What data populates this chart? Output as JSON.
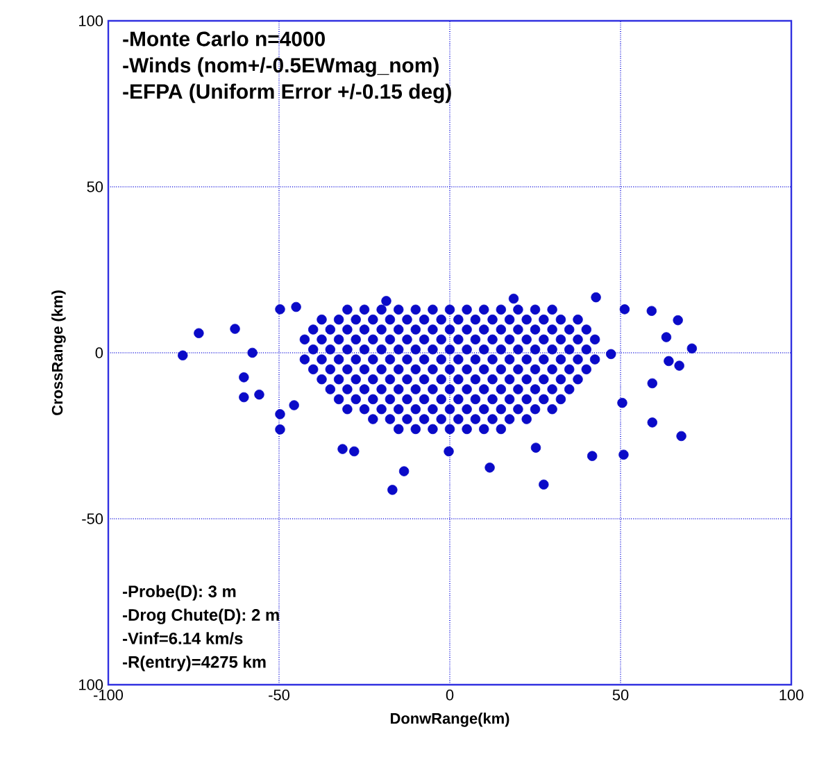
{
  "chart_data": {
    "type": "scatter",
    "xlabel": "DonwRange(km)",
    "ylabel": "CrossRange (km)",
    "xlim": [
      -100,
      100
    ],
    "ylim": [
      -100,
      100
    ],
    "xticks": [
      -100,
      -50,
      0,
      50,
      100
    ],
    "yticks": [
      {
        "value": -100,
        "label": "100"
      },
      -50,
      0,
      50,
      100
    ],
    "grid": true,
    "color": "#0a0ac8",
    "annotations": [
      "-Monte Carlo n=4000",
      "-Winds (nom+/-0.5EWmag_nom)",
      "-EFPA (Uniform Error +/-0.15 deg)",
      "-Probe(D): 3 m",
      "-Drog Chute(D): 2 m",
      "-Vinf=6.14 km/s",
      "-R(entry)=4275 km"
    ],
    "x": [
      -30,
      -25,
      -20,
      -15,
      -10,
      -5,
      0,
      5,
      10,
      15,
      20,
      25,
      30,
      -37.5,
      -32.5,
      -27.5,
      -22.5,
      -17.5,
      -12.5,
      -7.5,
      -2.5,
      2.5,
      7.5,
      12.5,
      17.5,
      22.5,
      27.5,
      32.5,
      37.5,
      -40,
      -35,
      -30,
      -25,
      -20,
      -15,
      -10,
      -5,
      0,
      5,
      10,
      15,
      20,
      25,
      30,
      35,
      40,
      -42.5,
      -37.5,
      -32.5,
      -27.5,
      -22.5,
      -17.5,
      -12.5,
      -7.5,
      -2.5,
      2.5,
      7.5,
      12.5,
      17.5,
      22.5,
      27.5,
      32.5,
      37.5,
      42.5,
      -40,
      -35,
      -30,
      -25,
      -20,
      -15,
      -10,
      -5,
      0,
      5,
      10,
      15,
      20,
      25,
      30,
      35,
      40,
      -42.5,
      -37.5,
      -32.5,
      -27.5,
      -22.5,
      -17.5,
      -12.5,
      -7.5,
      -2.5,
      2.5,
      7.5,
      12.5,
      17.5,
      22.5,
      27.5,
      32.5,
      37.5,
      42.5,
      -40,
      -35,
      -30,
      -25,
      -20,
      -15,
      -10,
      -5,
      0,
      5,
      10,
      15,
      20,
      25,
      30,
      35,
      40,
      -37.5,
      -32.5,
      -27.5,
      -22.5,
      -17.5,
      -12.5,
      -7.5,
      -2.5,
      2.5,
      7.5,
      12.5,
      17.5,
      22.5,
      27.5,
      32.5,
      37.5,
      -35,
      -30,
      -25,
      -20,
      -15,
      -10,
      -5,
      0,
      5,
      10,
      15,
      20,
      25,
      30,
      35,
      -32.5,
      -27.5,
      -22.5,
      -17.5,
      -12.5,
      -7.5,
      -2.5,
      2.5,
      7.5,
      12.5,
      17.5,
      22.5,
      27.5,
      32.5,
      -30,
      -25,
      -20,
      -15,
      -10,
      -5,
      0,
      5,
      10,
      15,
      20,
      25,
      30,
      -22.5,
      -17.5,
      -12.5,
      -7.5,
      -2.5,
      2.5,
      7.5,
      12.5,
      17.5,
      22.5,
      -15,
      -10,
      -5,
      0,
      5,
      10,
      15,
      -73.5,
      -78.2,
      -62.9,
      -57.8,
      -60.3,
      -60.3,
      -55.8,
      -49.7,
      -49.7,
      -45.6,
      -31.4,
      -28,
      -13.4,
      -16.8,
      11.7,
      27.5,
      -0.3,
      25.2,
      41.7,
      50.9,
      59.3,
      67.8,
      67.2,
      70.9,
      66.8,
      63.4,
      59.1,
      42.8,
      51.2,
      64.1,
      59.3,
      -49.7,
      -45,
      -18.6,
      18.7,
      47.2,
      50.5
    ],
    "values": [
      13,
      13,
      13,
      13,
      13,
      13,
      13,
      13,
      13,
      13,
      13,
      13,
      13,
      10,
      10,
      10,
      10,
      10,
      10,
      10,
      10,
      10,
      10,
      10,
      10,
      10,
      10,
      10,
      10,
      7,
      7,
      7,
      7,
      7,
      7,
      7,
      7,
      7,
      7,
      7,
      7,
      7,
      7,
      7,
      7,
      7,
      4,
      4,
      4,
      4,
      4,
      4,
      4,
      4,
      4,
      4,
      4,
      4,
      4,
      4,
      4,
      4,
      4,
      4,
      1,
      1,
      1,
      1,
      1,
      1,
      1,
      1,
      1,
      1,
      1,
      1,
      1,
      1,
      1,
      1,
      1,
      -2,
      -2,
      -2,
      -2,
      -2,
      -2,
      -2,
      -2,
      -2,
      -2,
      -2,
      -2,
      -2,
      -2,
      -2,
      -2,
      -2,
      -2,
      -5,
      -5,
      -5,
      -5,
      -5,
      -5,
      -5,
      -5,
      -5,
      -5,
      -5,
      -5,
      -5,
      -5,
      -5,
      -5,
      -5,
      -8,
      -8,
      -8,
      -8,
      -8,
      -8,
      -8,
      -8,
      -8,
      -8,
      -8,
      -8,
      -8,
      -8,
      -8,
      -8,
      -11,
      -11,
      -11,
      -11,
      -11,
      -11,
      -11,
      -11,
      -11,
      -11,
      -11,
      -11,
      -11,
      -11,
      -11,
      -14,
      -14,
      -14,
      -14,
      -14,
      -14,
      -14,
      -14,
      -14,
      -14,
      -14,
      -14,
      -14,
      -14,
      -17,
      -17,
      -17,
      -17,
      -17,
      -17,
      -17,
      -17,
      -17,
      -17,
      -17,
      -17,
      -17,
      -20,
      -20,
      -20,
      -20,
      -20,
      -20,
      -20,
      -20,
      -20,
      -20,
      -23,
      -23,
      -23,
      -23,
      -23,
      -23,
      -23,
      5.9,
      -0.8,
      7.2,
      0,
      -7.4,
      -13.4,
      -12.6,
      -18.5,
      -23.1,
      -15.8,
      -29,
      -29.7,
      -35.7,
      -41.3,
      -34.6,
      -39.7,
      -29.7,
      -28.6,
      -31.1,
      -30.7,
      -21,
      -25.1,
      -3.9,
      1.3,
      9.8,
      4.7,
      12.6,
      16.7,
      13.1,
      -2.5,
      -9.2,
      13.1,
      13.8,
      15.6,
      16.3,
      -0.4,
      -15.1
    ]
  }
}
